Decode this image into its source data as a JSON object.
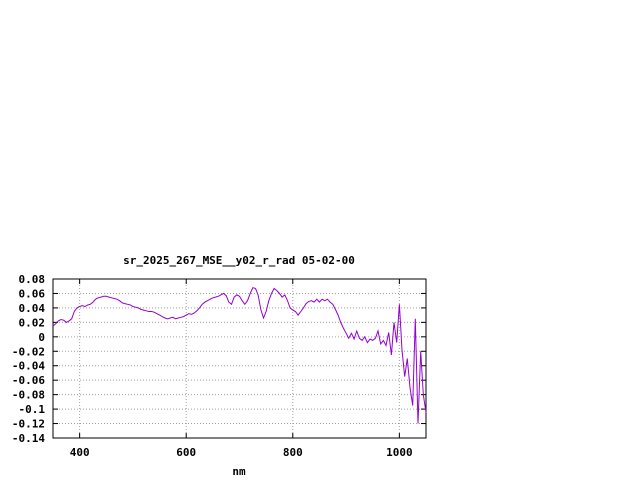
{
  "chart_data": {
    "type": "line",
    "title": "sr_2025_267_MSE__y02_r_rad 05-02-00",
    "xlabel": "nm",
    "ylabel": "",
    "xlim": [
      350,
      1050
    ],
    "ylim": [
      -0.14,
      0.08
    ],
    "xticks": [
      400,
      600,
      800,
      1000
    ],
    "yticks": [
      0.08,
      0.06,
      0.04,
      0.02,
      0,
      -0.02,
      -0.04,
      -0.06,
      -0.08,
      -0.1,
      -0.12,
      -0.14
    ],
    "ytick_labels": [
      "0.08",
      "0.06",
      "0.04",
      "0.02",
      "0",
      "-0.02",
      "-0.04",
      "-0.06",
      "-0.08",
      "-0.1",
      "-0.12",
      "-0.14"
    ],
    "xtick_labels": [
      "400",
      "600",
      "800",
      "1000"
    ],
    "grid": true,
    "line_color": "#9400d3",
    "series": [
      {
        "x": [
          350,
          355,
          360,
          365,
          370,
          375,
          380,
          385,
          390,
          395,
          400,
          405,
          410,
          415,
          420,
          425,
          430,
          435,
          440,
          445,
          450,
          455,
          460,
          465,
          470,
          475,
          480,
          485,
          490,
          495,
          500,
          505,
          510,
          515,
          520,
          525,
          530,
          535,
          540,
          545,
          550,
          555,
          560,
          565,
          570,
          575,
          580,
          585,
          590,
          595,
          600,
          605,
          610,
          615,
          620,
          625,
          630,
          635,
          640,
          645,
          650,
          655,
          660,
          665,
          670,
          675,
          680,
          685,
          690,
          695,
          700,
          705,
          710,
          715,
          720,
          725,
          730,
          735,
          740,
          745,
          750,
          755,
          760,
          765,
          770,
          775,
          780,
          785,
          790,
          795,
          800,
          805,
          810,
          815,
          820,
          825,
          830,
          835,
          840,
          845,
          850,
          855,
          860,
          865,
          870,
          875,
          880,
          885,
          890,
          895,
          900,
          905,
          910,
          915,
          920,
          925,
          930,
          935,
          940,
          945,
          950,
          955,
          960,
          965,
          970,
          975,
          980,
          985,
          990,
          995,
          1000,
          1005,
          1010,
          1015,
          1020,
          1025,
          1030,
          1035,
          1040,
          1045,
          1050
        ],
        "values": [
          0.015,
          0.018,
          0.022,
          0.024,
          0.023,
          0.02,
          0.022,
          0.025,
          0.035,
          0.04,
          0.042,
          0.043,
          0.042,
          0.044,
          0.045,
          0.048,
          0.052,
          0.054,
          0.055,
          0.056,
          0.056,
          0.055,
          0.054,
          0.053,
          0.052,
          0.05,
          0.047,
          0.046,
          0.045,
          0.044,
          0.042,
          0.041,
          0.04,
          0.038,
          0.037,
          0.036,
          0.035,
          0.035,
          0.034,
          0.032,
          0.03,
          0.028,
          0.026,
          0.025,
          0.026,
          0.027,
          0.025,
          0.026,
          0.027,
          0.028,
          0.03,
          0.032,
          0.031,
          0.033,
          0.036,
          0.04,
          0.045,
          0.048,
          0.05,
          0.052,
          0.054,
          0.055,
          0.056,
          0.058,
          0.06,
          0.057,
          0.048,
          0.045,
          0.055,
          0.058,
          0.056,
          0.05,
          0.045,
          0.05,
          0.06,
          0.068,
          0.067,
          0.058,
          0.038,
          0.026,
          0.035,
          0.05,
          0.06,
          0.067,
          0.064,
          0.06,
          0.055,
          0.058,
          0.05,
          0.04,
          0.037,
          0.035,
          0.03,
          0.035,
          0.04,
          0.046,
          0.049,
          0.05,
          0.048,
          0.052,
          0.048,
          0.052,
          0.05,
          0.052,
          0.048,
          0.045,
          0.038,
          0.03,
          0.02,
          0.012,
          0.005,
          -0.002,
          0.005,
          -0.003,
          0.008,
          -0.002,
          -0.005,
          0.0,
          -0.008,
          -0.003,
          -0.005,
          -0.002,
          0.008,
          -0.01,
          -0.005,
          -0.012,
          0.006,
          -0.025,
          0.02,
          -0.008,
          0.045,
          -0.018,
          -0.055,
          -0.03,
          -0.07,
          -0.095,
          0.025,
          -0.12,
          -0.02,
          -0.08,
          -0.105
        ]
      }
    ]
  }
}
